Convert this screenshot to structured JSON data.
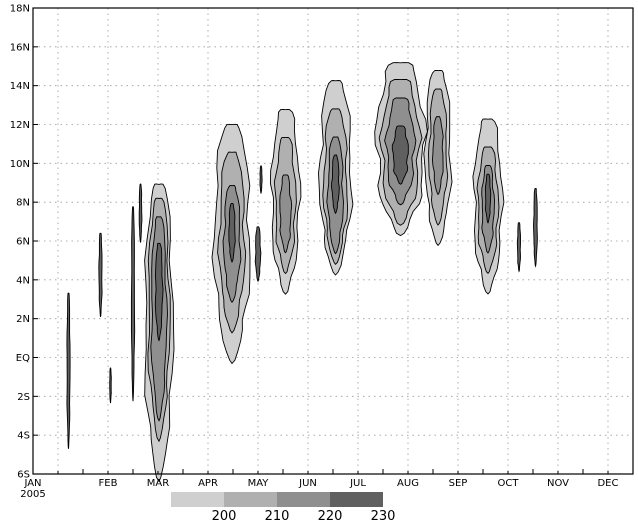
{
  "chart_data": {
    "type": "contour",
    "title": "",
    "xlabel": "",
    "ylabel": "",
    "x_ticks": [
      "JAN",
      "FEB",
      "MAR",
      "APR",
      "MAY",
      "JUN",
      "JUL",
      "AUG",
      "SEP",
      "OCT",
      "NOV",
      "DEC"
    ],
    "x_year": "2005",
    "y_ticks": [
      "18N",
      "16N",
      "14N",
      "12N",
      "10N",
      "8N",
      "6N",
      "4N",
      "2N",
      "EQ",
      "2S",
      "4S",
      "6S"
    ],
    "y_values": [
      18,
      16,
      14,
      12,
      10,
      8,
      6,
      4,
      2,
      0,
      -2,
      -4,
      -6
    ],
    "ylim": [
      -6,
      18
    ],
    "xlim_months": [
      0,
      12
    ],
    "grid": true,
    "levels": [
      200,
      210,
      220,
      230
    ],
    "level_colors": [
      "#cfcfcf",
      "#b0b0b0",
      "#8f8f8f",
      "#606060"
    ],
    "colorbar_labels": [
      "200",
      "210",
      "220",
      "230"
    ],
    "blobs": [
      {
        "month": 0.71,
        "lat_min": -4.5,
        "lat_max": 3.5,
        "width": 0.06,
        "level": 3
      },
      {
        "month": 1.35,
        "lat_min": 2.2,
        "lat_max": 6.5,
        "width": 0.06,
        "level": 3
      },
      {
        "month": 1.55,
        "lat_min": -2.3,
        "lat_max": -0.5,
        "width": 0.03,
        "level": 3
      },
      {
        "month": 2.0,
        "lat_min": -2.0,
        "lat_max": 8.0,
        "width": 0.06,
        "level": 3
      },
      {
        "month": 2.15,
        "lat_min": 6.0,
        "lat_max": 9.0,
        "width": 0.05,
        "level": 3
      },
      {
        "month": 2.52,
        "lat_min": -6.0,
        "lat_max": 9.3,
        "width": 0.55,
        "level": 0
      },
      {
        "month": 2.52,
        "lat_min": -4.0,
        "lat_max": 8.5,
        "width": 0.42,
        "level": 1
      },
      {
        "month": 2.52,
        "lat_min": -3.0,
        "lat_max": 7.5,
        "width": 0.3,
        "level": 2
      },
      {
        "month": 2.52,
        "lat_min": 1.0,
        "lat_max": 6.0,
        "width": 0.14,
        "level": 3
      },
      {
        "month": 3.98,
        "lat_min": 0.0,
        "lat_max": 12.3,
        "width": 0.7,
        "level": 0
      },
      {
        "month": 3.98,
        "lat_min": 1.5,
        "lat_max": 10.8,
        "width": 0.5,
        "level": 1
      },
      {
        "month": 3.98,
        "lat_min": 3.0,
        "lat_max": 9.0,
        "width": 0.32,
        "level": 2
      },
      {
        "month": 3.98,
        "lat_min": 5.0,
        "lat_max": 8.0,
        "width": 0.12,
        "level": 3
      },
      {
        "month": 4.5,
        "lat_min": 4.0,
        "lat_max": 6.8,
        "width": 0.1,
        "level": 3
      },
      {
        "month": 4.56,
        "lat_min": 8.5,
        "lat_max": 9.9,
        "width": 0.04,
        "level": 3
      },
      {
        "month": 5.05,
        "lat_min": 3.5,
        "lat_max": 13.0,
        "width": 0.55,
        "level": 0
      },
      {
        "month": 5.05,
        "lat_min": 4.5,
        "lat_max": 11.5,
        "width": 0.4,
        "level": 1
      },
      {
        "month": 5.05,
        "lat_min": 5.5,
        "lat_max": 9.5,
        "width": 0.22,
        "level": 2
      },
      {
        "month": 6.05,
        "lat_min": 4.5,
        "lat_max": 14.5,
        "width": 0.62,
        "level": 0
      },
      {
        "month": 6.05,
        "lat_min": 5.0,
        "lat_max": 13.0,
        "width": 0.46,
        "level": 1
      },
      {
        "month": 6.05,
        "lat_min": 5.5,
        "lat_max": 11.5,
        "width": 0.3,
        "level": 2
      },
      {
        "month": 6.05,
        "lat_min": 7.5,
        "lat_max": 10.5,
        "width": 0.14,
        "level": 3
      },
      {
        "month": 7.35,
        "lat_min": 6.5,
        "lat_max": 15.4,
        "width": 0.95,
        "level": 0
      },
      {
        "month": 7.35,
        "lat_min": 7.0,
        "lat_max": 14.5,
        "width": 0.75,
        "level": 1
      },
      {
        "month": 7.35,
        "lat_min": 8.0,
        "lat_max": 13.5,
        "width": 0.55,
        "level": 2
      },
      {
        "month": 7.35,
        "lat_min": 9.0,
        "lat_max": 12.0,
        "width": 0.3,
        "level": 3
      },
      {
        "month": 8.1,
        "lat_min": 6.0,
        "lat_max": 15.0,
        "width": 0.5,
        "level": 0
      },
      {
        "month": 8.1,
        "lat_min": 7.0,
        "lat_max": 14.0,
        "width": 0.35,
        "level": 1
      },
      {
        "month": 8.1,
        "lat_min": 8.5,
        "lat_max": 12.5,
        "width": 0.2,
        "level": 2
      },
      {
        "month": 9.1,
        "lat_min": 3.5,
        "lat_max": 12.5,
        "width": 0.55,
        "level": 0
      },
      {
        "month": 9.1,
        "lat_min": 4.5,
        "lat_max": 11.0,
        "width": 0.4,
        "level": 1
      },
      {
        "month": 9.1,
        "lat_min": 5.5,
        "lat_max": 10.0,
        "width": 0.24,
        "level": 2
      },
      {
        "month": 9.1,
        "lat_min": 7.0,
        "lat_max": 9.5,
        "width": 0.1,
        "level": 3
      },
      {
        "month": 9.72,
        "lat_min": 4.5,
        "lat_max": 7.0,
        "width": 0.06,
        "level": 3
      },
      {
        "month": 10.05,
        "lat_min": 4.8,
        "lat_max": 8.8,
        "width": 0.07,
        "level": 3
      }
    ]
  }
}
